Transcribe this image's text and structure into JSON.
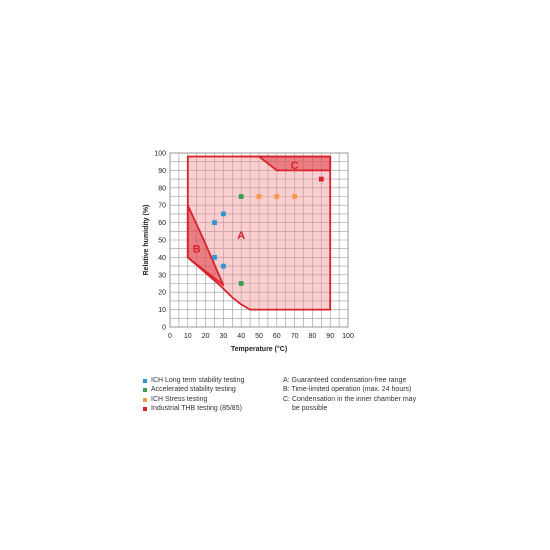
{
  "chart_data": {
    "type": "scatter",
    "xlabel": "Temperature (°C)",
    "ylabel": "Relative humidity (%)",
    "xlim": [
      0,
      100
    ],
    "ylim": [
      0,
      100
    ],
    "x_ticks": [
      0,
      10,
      20,
      30,
      40,
      50,
      60,
      70,
      80,
      90,
      100
    ],
    "y_ticks": [
      0,
      10,
      20,
      30,
      40,
      50,
      60,
      70,
      80,
      90,
      100
    ],
    "grid": true,
    "regions": [
      {
        "label": "A",
        "label_at": [
          40,
          53
        ],
        "polygon": [
          [
            10,
            98
          ],
          [
            90,
            98
          ],
          [
            90,
            10
          ],
          [
            45,
            10
          ],
          [
            40,
            13
          ],
          [
            35,
            17
          ],
          [
            28,
            24
          ],
          [
            10,
            40
          ]
        ]
      },
      {
        "label": "B",
        "label_at": [
          15,
          45
        ],
        "polygon": [
          [
            10,
            70
          ],
          [
            19,
            50
          ],
          [
            30,
            24
          ],
          [
            10,
            40
          ]
        ]
      },
      {
        "label": "C",
        "label_at": [
          70,
          93
        ],
        "polygon": [
          [
            40,
            98
          ],
          [
            90,
            98
          ],
          [
            90,
            90
          ],
          [
            60,
            90
          ],
          [
            50,
            98
          ]
        ]
      }
    ],
    "series": [
      {
        "name": "ICH Long term stability testing",
        "color": "#2d96d3",
        "points": [
          [
            25,
            60
          ],
          [
            30,
            65
          ],
          [
            25,
            40
          ],
          [
            30,
            35
          ]
        ]
      },
      {
        "name": "Accelerated stability testing",
        "color": "#3a9e4f",
        "points": [
          [
            40,
            75
          ],
          [
            40,
            25
          ]
        ]
      },
      {
        "name": "ICH Stress testing",
        "color": "#f39a4b",
        "points": [
          [
            50,
            75
          ],
          [
            60,
            75
          ],
          [
            70,
            75
          ]
        ]
      },
      {
        "name": "Industrial THB testing (85/85)",
        "color": "#d8232a",
        "points": [
          [
            85,
            85
          ]
        ]
      }
    ],
    "notes": [
      "A: Guaranteed condensation-free range",
      "B: Time-limited operation (max. 24 hours)",
      "C: Condensation in the inner chamber may",
      "be possible"
    ]
  }
}
